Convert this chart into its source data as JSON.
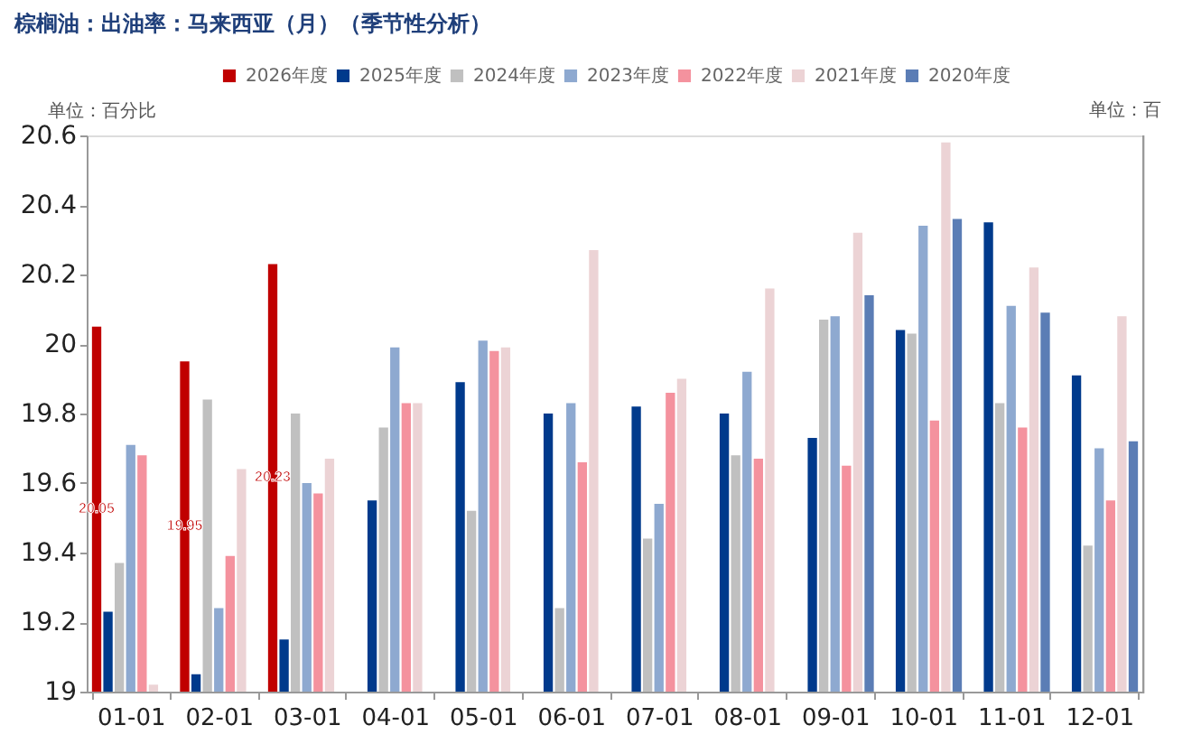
{
  "chart_data": {
    "type": "bar",
    "title": "棕榈油：出油率：马来西亚（月）（季节性分析）",
    "ylabel": "单位：百分比",
    "annotations": [
      "单位：百"
    ],
    "categories": [
      "01-01",
      "02-01",
      "03-01",
      "04-01",
      "05-01",
      "06-01",
      "07-01",
      "08-01",
      "09-01",
      "10-01",
      "11-01",
      "12-01"
    ],
    "series": [
      {
        "name": "2026年度",
        "color": "#c00000",
        "values": [
          20.05,
          19.95,
          20.23,
          null,
          null,
          null,
          null,
          null,
          null,
          null,
          null,
          null
        ],
        "value_labels": [
          "20.05",
          "19.95",
          "20.23",
          null,
          null,
          null,
          null,
          null,
          null,
          null,
          null,
          null
        ]
      },
      {
        "name": "2025年度",
        "color": "#003a8c",
        "values": [
          19.23,
          19.05,
          19.15,
          19.55,
          19.89,
          19.8,
          19.82,
          19.8,
          19.73,
          20.04,
          20.35,
          19.91
        ]
      },
      {
        "name": "2024年度",
        "color": "#c0c0c0",
        "values": [
          19.37,
          19.84,
          19.8,
          19.76,
          19.52,
          19.24,
          19.44,
          19.68,
          20.07,
          20.03,
          19.83,
          19.42
        ]
      },
      {
        "name": "2023年度",
        "color": "#8ea9d0",
        "values": [
          19.71,
          19.24,
          19.6,
          19.99,
          20.01,
          19.83,
          19.54,
          19.92,
          20.08,
          20.34,
          20.11,
          19.7
        ]
      },
      {
        "name": "2022年度",
        "color": "#f4929e",
        "values": [
          19.68,
          19.39,
          19.57,
          19.83,
          19.98,
          19.66,
          19.86,
          19.67,
          19.65,
          19.78,
          19.76,
          19.55
        ]
      },
      {
        "name": "2021年度",
        "color": "#ecd3d5",
        "values": [
          19.02,
          19.64,
          19.67,
          19.83,
          19.99,
          20.27,
          19.9,
          20.16,
          20.32,
          20.58,
          20.22,
          20.08
        ]
      },
      {
        "name": "2020年度",
        "color": "#5b7db5",
        "values": [
          null,
          null,
          null,
          null,
          null,
          null,
          null,
          null,
          20.14,
          20.36,
          20.09,
          19.72
        ]
      }
    ],
    "ylim": [
      19,
      20.6
    ],
    "yticks": [
      19,
      19.2,
      19.4,
      19.6,
      19.8,
      20,
      20.2,
      20.4,
      20.6
    ],
    "grid": false,
    "legend": "top"
  }
}
